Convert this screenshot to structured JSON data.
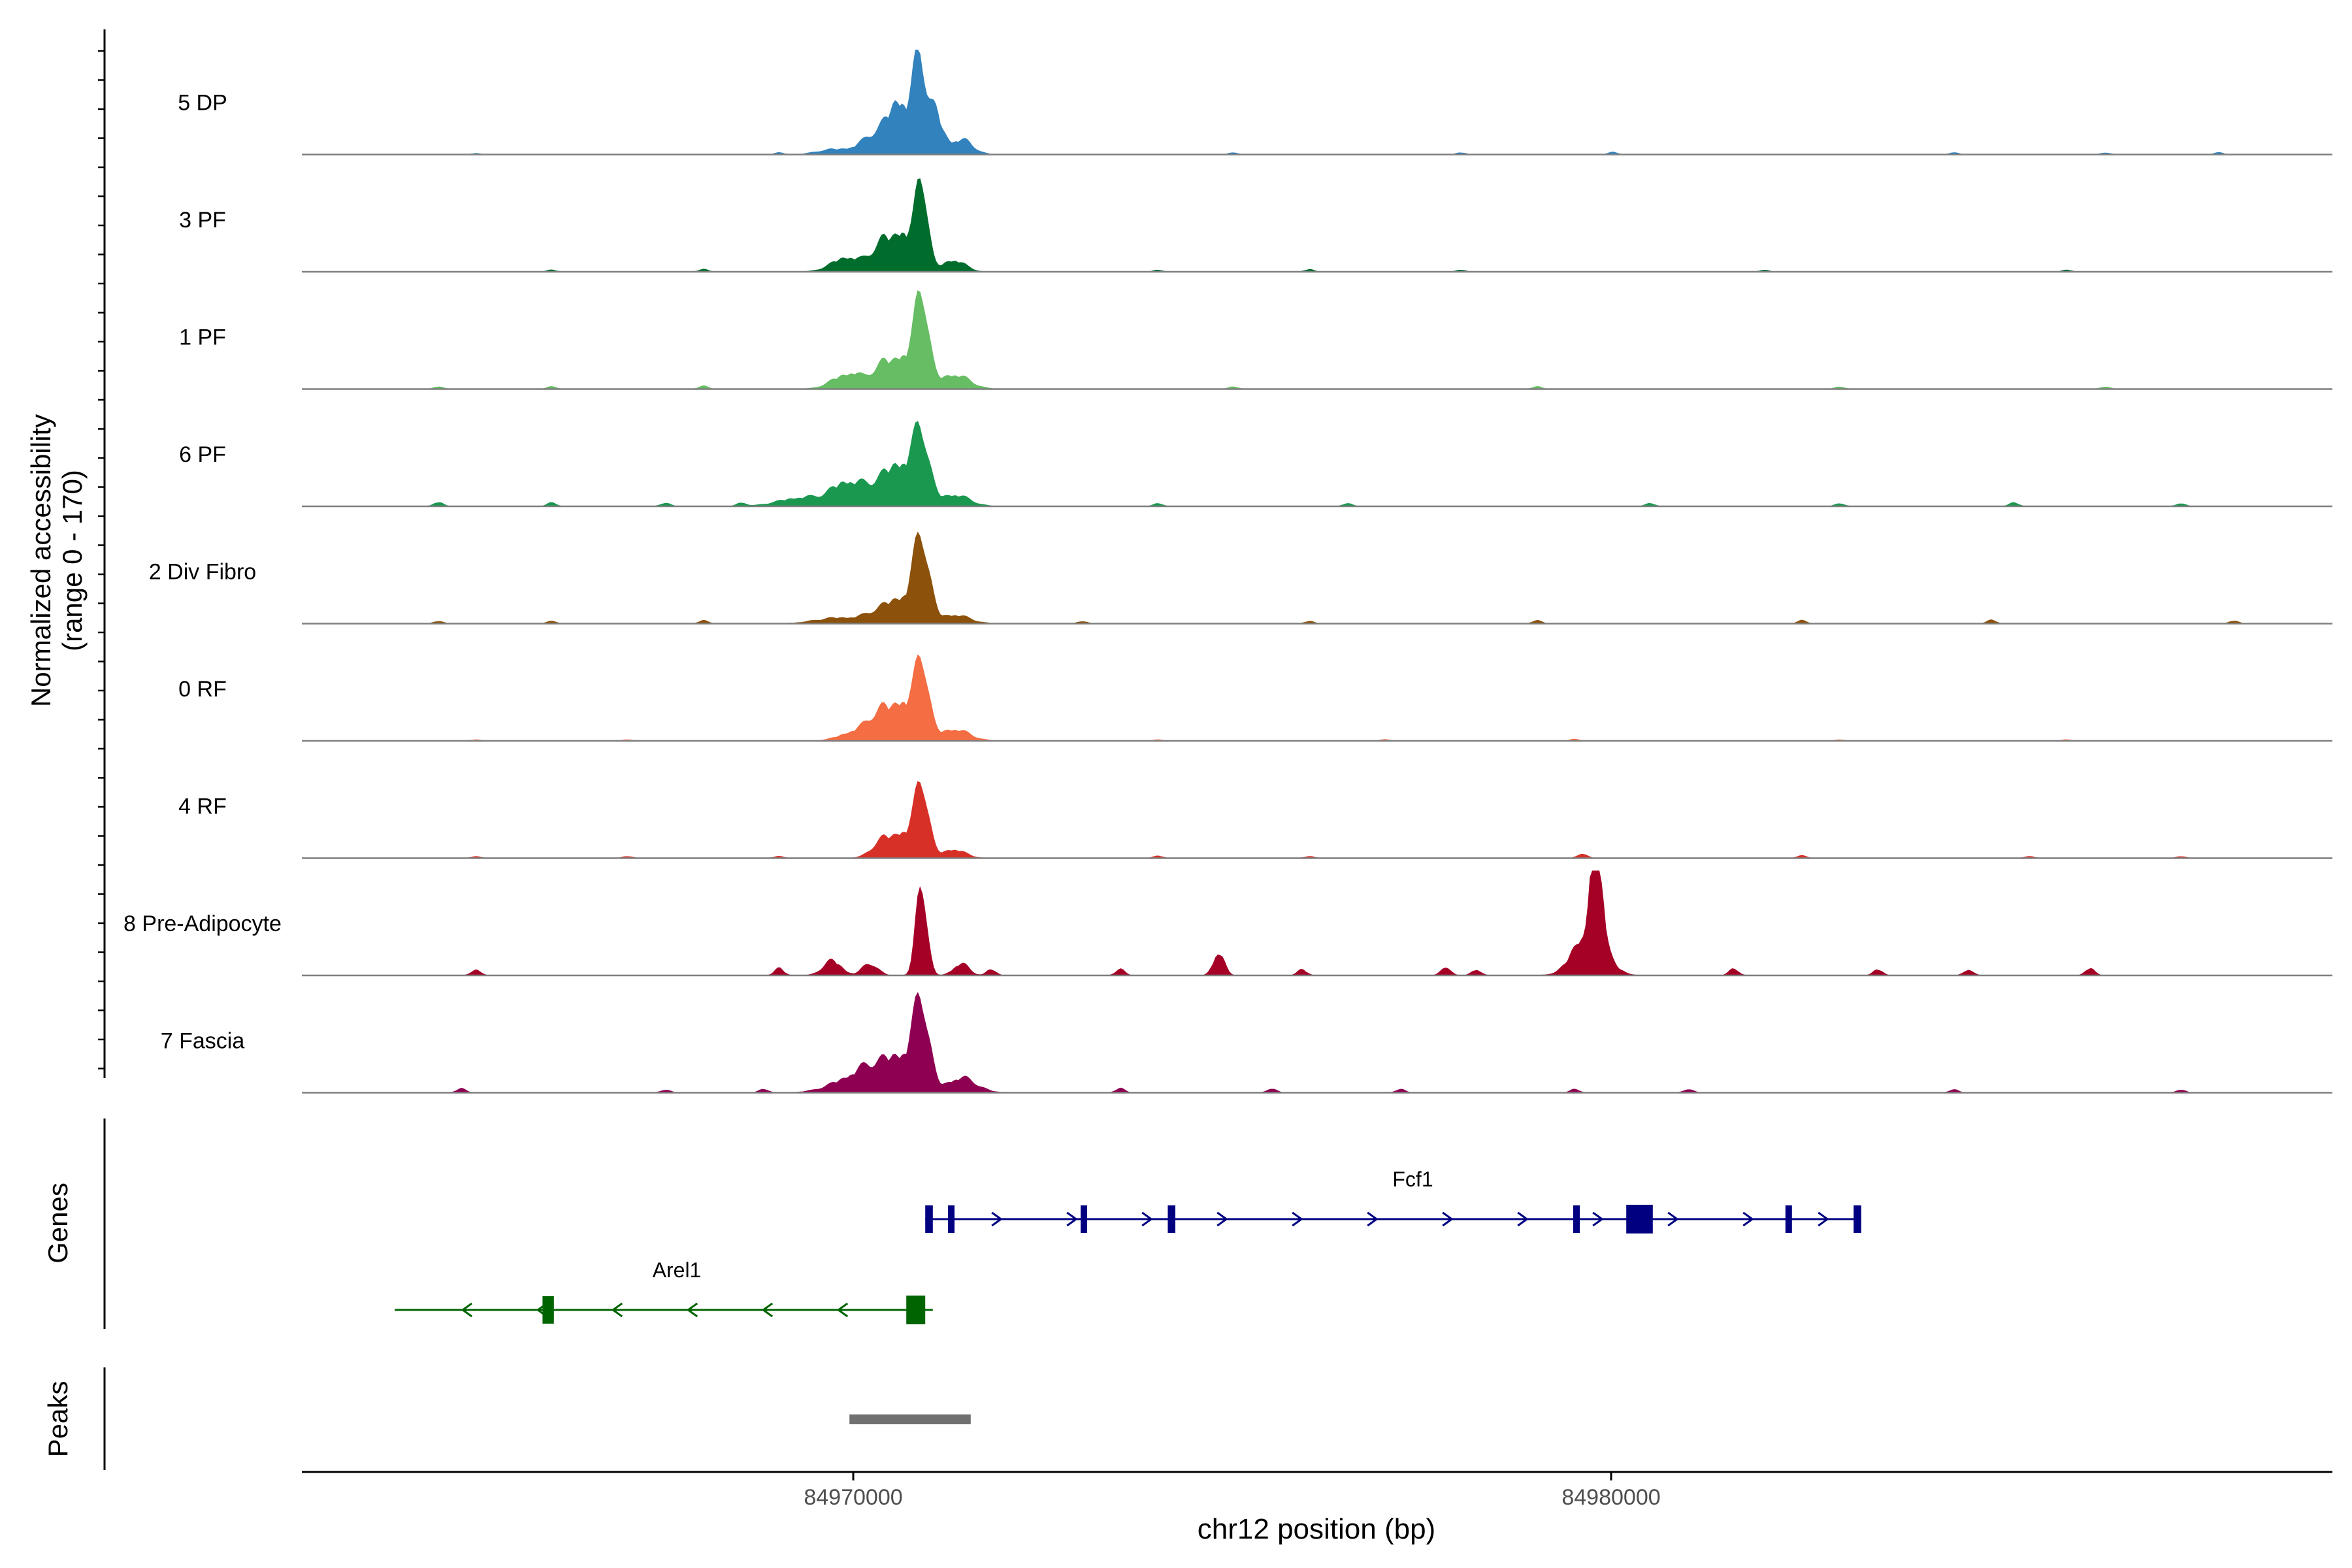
{
  "chart_data": {
    "type": "area",
    "subtype": "genome-browser coverage plot",
    "ylabel": "Normalized accessibility",
    "ylabel_range": "(range 0 - 170)",
    "ylim": [
      0,
      170
    ],
    "xlabel": "chr12 position (bp)",
    "xlim": [
      84962700,
      84989500
    ],
    "x_ticks": [
      84970000,
      84980000
    ],
    "x_tick_labels": [
      "84970000",
      "84980000"
    ],
    "grid": false,
    "legend": "none",
    "tracks": [
      {
        "name": "5 DP",
        "color": "#3182bd",
        "peaks": [
          [
            84970400,
            45,
            250
          ],
          [
            84970600,
            62,
            120
          ],
          [
            84970850,
            150,
            80
          ],
          [
            84971050,
            70,
            100
          ],
          [
            84971400,
            25,
            150
          ],
          [
            84969700,
            8,
            200
          ]
        ],
        "noise": [
          [
            84965000,
            2
          ],
          [
            84969000,
            3
          ],
          [
            84975000,
            3
          ],
          [
            84978000,
            3
          ],
          [
            84980000,
            4
          ],
          [
            84984500,
            3
          ],
          [
            84986500,
            3
          ],
          [
            84988000,
            3
          ]
        ]
      },
      {
        "name": "3 PF",
        "color": "#006d2c",
        "peaks": [
          [
            84969900,
            25,
            200
          ],
          [
            84970400,
            55,
            150
          ],
          [
            84970650,
            55,
            100
          ],
          [
            84970880,
            160,
            80
          ],
          [
            84971300,
            20,
            150
          ]
        ],
        "noise": [
          [
            84966000,
            3
          ],
          [
            84968000,
            4
          ],
          [
            84974000,
            3
          ],
          [
            84976000,
            4
          ],
          [
            84978000,
            3
          ],
          [
            84982000,
            3
          ],
          [
            84986000,
            3
          ]
        ]
      },
      {
        "name": "1 PF",
        "color": "#66bd63",
        "peaks": [
          [
            84969900,
            25,
            200
          ],
          [
            84970400,
            45,
            150
          ],
          [
            84970650,
            45,
            100
          ],
          [
            84970880,
            165,
            90
          ],
          [
            84971300,
            25,
            200
          ]
        ],
        "noise": [
          [
            84964500,
            4
          ],
          [
            84966000,
            4
          ],
          [
            84968000,
            5
          ],
          [
            84970000,
            5
          ],
          [
            84975000,
            4
          ],
          [
            84979000,
            4
          ],
          [
            84983000,
            4
          ],
          [
            84986500,
            4
          ]
        ]
      },
      {
        "name": "6 PF",
        "color": "#1a9850",
        "peaks": [
          [
            84969900,
            40,
            200
          ],
          [
            84970400,
            45,
            200
          ],
          [
            84970650,
            50,
            150
          ],
          [
            84970880,
            115,
            100
          ],
          [
            84971300,
            20,
            200
          ],
          [
            84969300,
            15,
            300
          ]
        ],
        "noise": [
          [
            84964500,
            7
          ],
          [
            84966000,
            6
          ],
          [
            84967500,
            6
          ],
          [
            84968500,
            6
          ],
          [
            84974000,
            5
          ],
          [
            84976500,
            5
          ],
          [
            84980500,
            5
          ],
          [
            84983000,
            5
          ],
          [
            84985300,
            6
          ],
          [
            84987500,
            5
          ]
        ]
      },
      {
        "name": "2 Div Fibro",
        "color": "#8c510a",
        "peaks": [
          [
            84970400,
            25,
            200
          ],
          [
            84970650,
            30,
            150
          ],
          [
            84970880,
            140,
            100
          ],
          [
            84971300,
            15,
            200
          ],
          [
            84969800,
            10,
            300
          ]
        ],
        "noise": [
          [
            84964500,
            4
          ],
          [
            84966000,
            4
          ],
          [
            84968000,
            5
          ],
          [
            84973000,
            4
          ],
          [
            84976000,
            4
          ],
          [
            84979000,
            5
          ],
          [
            84982500,
            5
          ],
          [
            84985000,
            6
          ],
          [
            84988200,
            5
          ]
        ]
      },
      {
        "name": "0 RF",
        "color": "#f46d43",
        "peaks": [
          [
            84970000,
            15,
            200
          ],
          [
            84970400,
            55,
            180
          ],
          [
            84970650,
            45,
            100
          ],
          [
            84970880,
            140,
            90
          ],
          [
            84971300,
            20,
            200
          ]
        ],
        "noise": [
          [
            84965000,
            2
          ],
          [
            84967000,
            2
          ],
          [
            84974000,
            2
          ],
          [
            84977000,
            2
          ],
          [
            84979500,
            3
          ],
          [
            84983000,
            2
          ],
          [
            84986000,
            2
          ]
        ]
      },
      {
        "name": "4 RF",
        "color": "#d73027",
        "peaks": [
          [
            84970400,
            35,
            150
          ],
          [
            84970650,
            35,
            100
          ],
          [
            84970880,
            130,
            90
          ],
          [
            84971300,
            15,
            150
          ]
        ],
        "noise": [
          [
            84965000,
            3
          ],
          [
            84967000,
            3
          ],
          [
            84969000,
            3
          ],
          [
            84974000,
            4
          ],
          [
            84976000,
            3
          ],
          [
            84979600,
            8
          ],
          [
            84982500,
            4
          ],
          [
            84985500,
            3
          ],
          [
            84987500,
            3
          ]
        ]
      },
      {
        "name": "8 Pre-Adipocyte",
        "color": "#a50026",
        "peaks": [
          [
            84969700,
            25,
            120
          ],
          [
            84970200,
            20,
            100
          ],
          [
            84970880,
            160,
            70
          ],
          [
            84971400,
            20,
            100
          ],
          [
            84974800,
            40,
            70
          ],
          [
            84979700,
            80,
            200
          ],
          [
            84979800,
            170,
            70
          ]
        ],
        "noise": [
          [
            84965000,
            10
          ],
          [
            84969000,
            12
          ],
          [
            84971800,
            10
          ],
          [
            84973500,
            10
          ],
          [
            84975900,
            10
          ],
          [
            84977800,
            15
          ],
          [
            84978200,
            10
          ],
          [
            84981600,
            12
          ],
          [
            84983500,
            10
          ],
          [
            84984700,
            10
          ],
          [
            84986300,
            12
          ]
        ]
      },
      {
        "name": "7 Fascia",
        "color": "#8e0152",
        "peaks": [
          [
            84970000,
            25,
            300
          ],
          [
            84970400,
            40,
            250
          ],
          [
            84970650,
            35,
            150
          ],
          [
            84970880,
            145,
            100
          ],
          [
            84971400,
            25,
            200
          ]
        ],
        "noise": [
          [
            84964800,
            7
          ],
          [
            84967500,
            5
          ],
          [
            84968800,
            6
          ],
          [
            84973500,
            7
          ],
          [
            84975500,
            7
          ],
          [
            84977200,
            6
          ],
          [
            84979500,
            6
          ],
          [
            84981000,
            6
          ],
          [
            84984500,
            5
          ],
          [
            84987500,
            5
          ]
        ]
      }
    ],
    "genes_track": {
      "label": "Genes",
      "genes": [
        {
          "name": "Fcf1",
          "color": "#000080",
          "strand": "+",
          "start": 84970950,
          "end": 84983300,
          "exons": [
            [
              84970950,
              84971050
            ],
            [
              84971250,
              84971300
            ],
            [
              84973000,
              84973050
            ],
            [
              84974150,
              84974250
            ],
            [
              84979500,
              84979550
            ],
            [
              84980200,
              84980550
            ],
            [
              84982300,
              84982350
            ],
            [
              84983200,
              84983300
            ]
          ]
        },
        {
          "name": "Arel1",
          "color": "#006400",
          "strand": "-",
          "start": 84963950,
          "end": 84971050,
          "exons": [
            [
              84965900,
              84966050
            ],
            [
              84970700,
              84970950
            ]
          ]
        }
      ]
    },
    "peaks_track": {
      "label": "Peaks",
      "color": "#707070",
      "regions": [
        [
          84969950,
          84971550
        ]
      ]
    }
  }
}
